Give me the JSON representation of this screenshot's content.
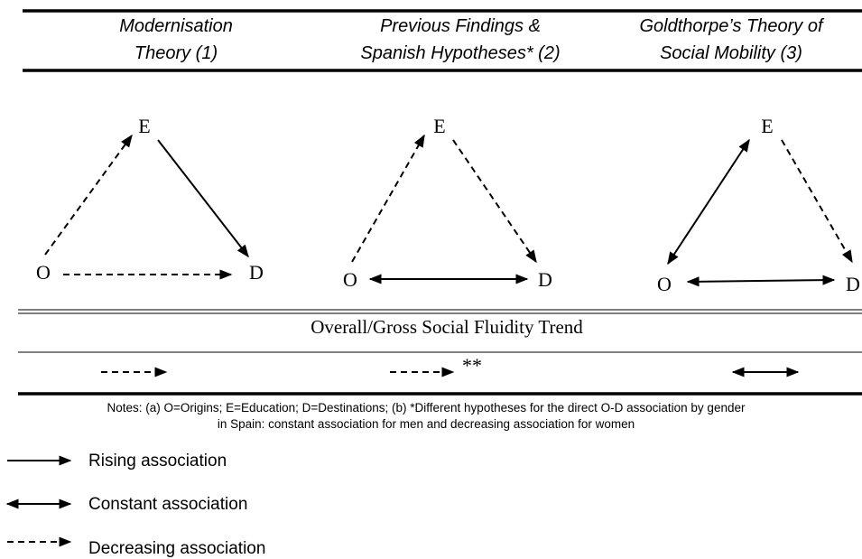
{
  "header": [
    {
      "lines": [
        "Modernisation",
        "Theory (1)"
      ]
    },
    {
      "lines": [
        "Previous Findings &",
        "Spanish Hypotheses* (2)"
      ]
    },
    {
      "lines": [
        "Goldthorpe’s Theory of",
        "Social Mobility (3)"
      ]
    }
  ],
  "diagrams": [
    {
      "nodes": [
        "E",
        "O",
        "D"
      ]
    },
    {
      "nodes": [
        "E",
        "O",
        "D"
      ]
    },
    {
      "nodes": [
        "E",
        "O",
        "D"
      ]
    }
  ],
  "trend": {
    "title": "Overall/Gross Social Fluidity Trend",
    "footnote_mark": "**"
  },
  "notes": [
    "Notes: (a) O=Origins; E=Education; D=Destinations; (b) *Different hypotheses for the direct O-D association by gender",
    "in Spain: constant association for men and decreasing association for women"
  ],
  "legend": [
    "Rising association",
    "Constant association",
    "Decreasing association"
  ]
}
